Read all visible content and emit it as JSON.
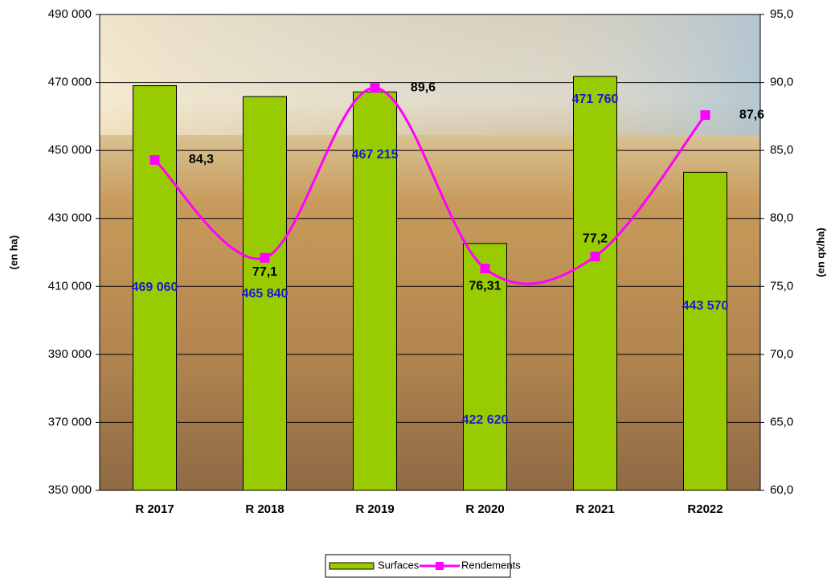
{
  "chart_data": {
    "type": "bar-line",
    "categories": [
      "R 2017",
      "R 2018",
      "R 2019",
      "R 2020",
      "R 2021",
      "R2022"
    ],
    "series": [
      {
        "name": "Surfaces",
        "type": "bar",
        "color": "#99cc00",
        "values": [
          469060,
          465840,
          467215,
          422620,
          471760,
          443570
        ],
        "value_labels": [
          "469 060",
          "465 840",
          "467 215",
          "422 620",
          "471 760",
          "443 570"
        ]
      },
      {
        "name": "Rendements",
        "type": "line",
        "axis": "y2",
        "color": "#ff00ff",
        "values": [
          84.3,
          77.1,
          89.6,
          76.31,
          77.2,
          87.6
        ],
        "value_labels": [
          "84,3",
          "77,1",
          "89,6",
          "76,31",
          "77,2",
          "87,6"
        ]
      }
    ],
    "y_label": "(en ha)",
    "y2_label": "(en qx/ha)",
    "ylim": [
      350000,
      490000
    ],
    "yticks": [
      {
        "value": 350000,
        "label": "350 000"
      },
      {
        "value": 370000,
        "label": "370 000"
      },
      {
        "value": 390000,
        "label": "390 000"
      },
      {
        "value": 410000,
        "label": "410 000"
      },
      {
        "value": 430000,
        "label": "430 000"
      },
      {
        "value": 450000,
        "label": "450 000"
      },
      {
        "value": 470000,
        "label": "470 000"
      },
      {
        "value": 490000,
        "label": "490 000"
      }
    ],
    "y2lim": [
      60,
      95
    ],
    "y2ticks": [
      {
        "value": 60,
        "label": "60,0"
      },
      {
        "value": 65,
        "label": "65,0"
      },
      {
        "value": 70,
        "label": "70,0"
      },
      {
        "value": 75,
        "label": "75,0"
      },
      {
        "value": 80,
        "label": "80,0"
      },
      {
        "value": 85,
        "label": "85,0"
      },
      {
        "value": 90,
        "label": "90,0"
      },
      {
        "value": 95,
        "label": "95,0"
      }
    ],
    "grid": true,
    "legend": "bottom"
  }
}
